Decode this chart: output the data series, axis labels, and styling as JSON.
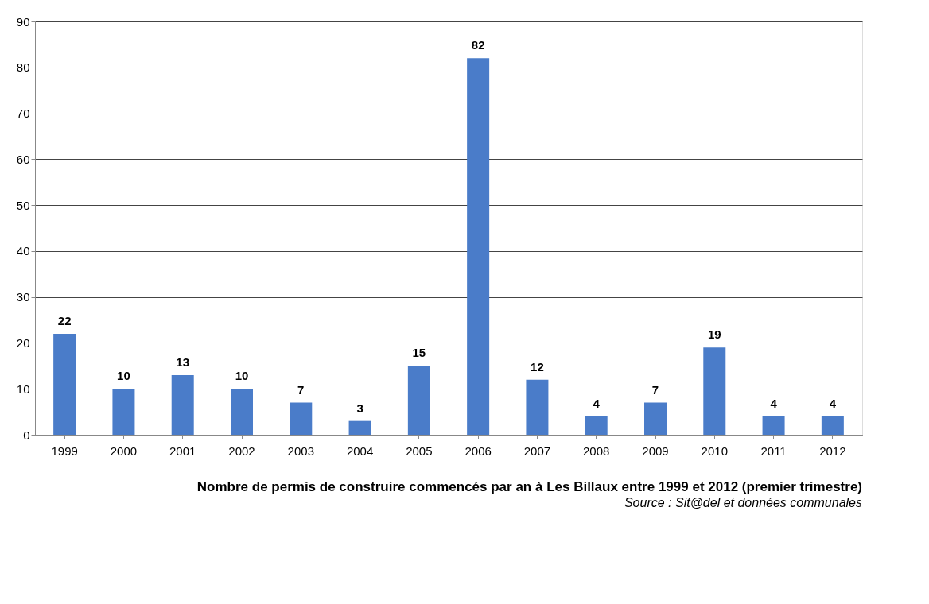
{
  "chart_data": {
    "type": "bar",
    "title": "Nombre de permis de construire commencés par an à Les Billaux entre 1999 et 2012 (premier trimestre)",
    "annotations": [
      "Source : Sit@del et données communales"
    ],
    "categories": [
      "1999",
      "2000",
      "2001",
      "2002",
      "2003",
      "2004",
      "2005",
      "2006",
      "2007",
      "2008",
      "2009",
      "2010",
      "2011",
      "2012"
    ],
    "values": [
      22,
      10,
      13,
      10,
      7,
      3,
      15,
      82,
      12,
      4,
      7,
      19,
      4,
      4
    ],
    "color": "#4a7cc9",
    "ylim": [
      0,
      90
    ],
    "yticks": [
      0,
      10,
      20,
      30,
      40,
      50,
      60,
      70,
      80,
      90
    ],
    "grid": "y",
    "data_labels": true
  }
}
